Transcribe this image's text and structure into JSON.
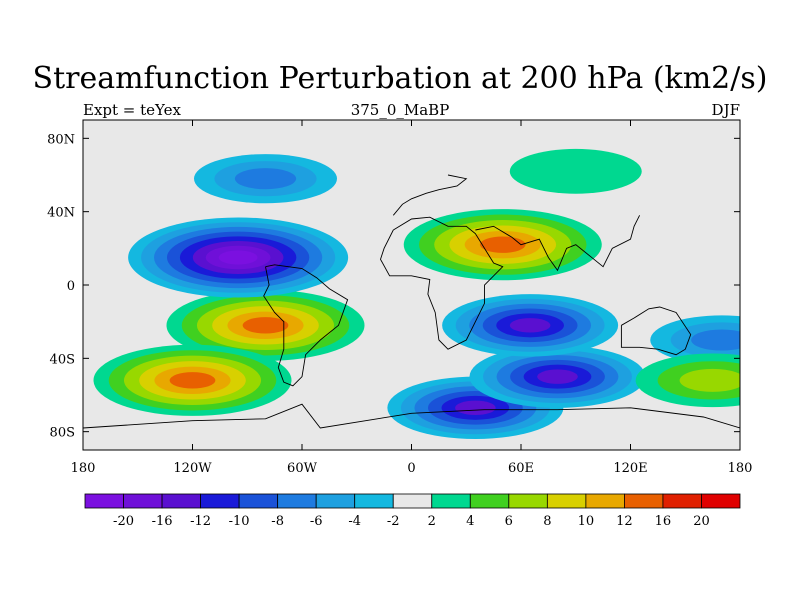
{
  "chart_data": {
    "type": "heatmap",
    "title": "Streamfunction Perturbation at 200 hPa (km2/s)",
    "left_string": "Expt = teYex",
    "center_string": "375_0_MaBP",
    "right_string": "DJF",
    "x_ticks": [
      "180",
      "120W",
      "60W",
      "0",
      "60E",
      "120E",
      "180"
    ],
    "x_tick_values": [
      -180,
      -120,
      -60,
      0,
      60,
      120,
      180
    ],
    "y_ticks": [
      "80N",
      "40N",
      "0",
      "40S",
      "80S"
    ],
    "y_tick_values": [
      80,
      40,
      0,
      -40,
      -80
    ],
    "xlim": [
      -180,
      180
    ],
    "ylim": [
      -90,
      90
    ],
    "contour_levels": [
      "-20",
      "-16",
      "-12",
      "-10",
      "-8",
      "-6",
      "-4",
      "-2",
      "2",
      "4",
      "6",
      "8",
      "10",
      "12",
      "16",
      "20"
    ],
    "colorbar_colors": [
      "#7b10e0",
      "#6f10d8",
      "#5a10d0",
      "#1a1ad8",
      "#1a52d8",
      "#1e7be0",
      "#1ea0e0",
      "#14b8e0",
      "#e8e8e8",
      "#00d890",
      "#40d020",
      "#98d800",
      "#d8d000",
      "#e8a800",
      "#e86000",
      "#e02000",
      "#e00000"
    ],
    "features": [
      {
        "label": "high",
        "lon": 50,
        "lat": 22,
        "value": 16
      },
      {
        "label": "high",
        "lon": -80,
        "lat": -22,
        "value": 16
      },
      {
        "label": "high",
        "lon": -120,
        "lat": -52,
        "value": 16
      },
      {
        "label": "low",
        "lon": -95,
        "lat": 15,
        "value": -20
      },
      {
        "label": "low",
        "lon": 35,
        "lat": -67,
        "value": -12
      },
      {
        "label": "low",
        "lon": 80,
        "lat": -50,
        "value": -12
      },
      {
        "label": "low",
        "lon": 65,
        "lat": -22,
        "value": -12
      },
      {
        "label": "low",
        "lon": -80,
        "lat": 58,
        "value": -6
      },
      {
        "label": "low",
        "lon": 170,
        "lat": -30,
        "value": -6
      },
      {
        "label": "high",
        "lon": 165,
        "lat": -52,
        "value": 8
      },
      {
        "label": "high",
        "lon": 90,
        "lat": 62,
        "value": 4
      }
    ]
  }
}
